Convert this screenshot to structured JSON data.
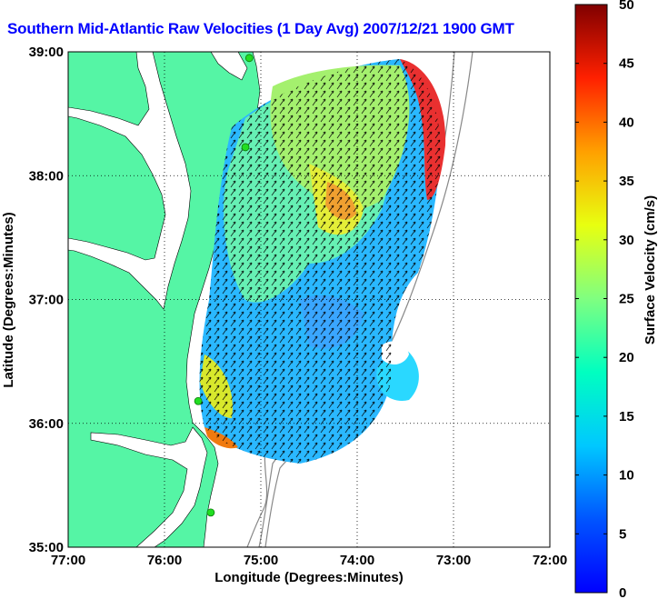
{
  "title": "Southern Mid-Atlantic Raw Velocities (1 Day Avg) 2007/12/21 1900 GMT",
  "xlabel": "Longitude (Degrees:Minutes)",
  "ylabel": "Latitude (Degrees:Minutes)",
  "colorbar_label": "Surface Velocity (cm/s)",
  "x_ticks": [
    "77:00",
    "76:00",
    "75:00",
    "74:00",
    "73:00",
    "72:00"
  ],
  "y_ticks": [
    "39:00",
    "38:00",
    "37:00",
    "36:00",
    "35:00"
  ],
  "colorbar_ticks": [
    "0",
    "5",
    "10",
    "15",
    "20",
    "25",
    "30",
    "35",
    "40",
    "45",
    "50"
  ],
  "colors": {
    "land": "#55f5a5",
    "coast": "#000000",
    "bathymetry": "#888888",
    "site_marker": "#22dd22",
    "title": "#0000ff"
  },
  "chart_data": {
    "type": "heatmap",
    "xlim": [
      -77,
      -72
    ],
    "ylim": [
      35,
      39
    ],
    "colorbar_range": [
      0,
      50
    ],
    "colormap": "jet",
    "stations": [
      {
        "lon": -75.12,
        "lat": 38.95
      },
      {
        "lon": -75.16,
        "lat": 38.23
      },
      {
        "lon": -75.65,
        "lat": 36.18
      },
      {
        "lon": -75.52,
        "lat": 35.28
      }
    ]
  }
}
